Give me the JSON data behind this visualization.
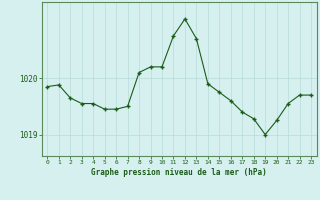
{
  "x": [
    0,
    1,
    2,
    3,
    4,
    5,
    6,
    7,
    8,
    9,
    10,
    11,
    12,
    13,
    14,
    15,
    16,
    17,
    18,
    19,
    20,
    21,
    22,
    23
  ],
  "y": [
    1019.85,
    1019.88,
    1019.65,
    1019.55,
    1019.55,
    1019.45,
    1019.45,
    1019.5,
    1020.1,
    1020.2,
    1020.2,
    1020.75,
    1021.05,
    1020.7,
    1019.9,
    1019.75,
    1019.6,
    1019.4,
    1019.28,
    1019.0,
    1019.25,
    1019.55,
    1019.7,
    1019.7
  ],
  "ylim": [
    1018.62,
    1021.35
  ],
  "yticks": [
    1019.0,
    1020.0
  ],
  "ylabel_values": [
    "1019",
    "1020"
  ],
  "xlabel_label": "Graphe pression niveau de la mer (hPa)",
  "line_color": "#1a5c1a",
  "marker_color": "#1a5c1a",
  "bg_color": "#d6f0ef",
  "grid_color": "#b8dbd9",
  "axis_color": "#1a5c1a",
  "border_color": "#5a8a5a",
  "figsize": [
    3.2,
    2.0
  ],
  "dpi": 100
}
